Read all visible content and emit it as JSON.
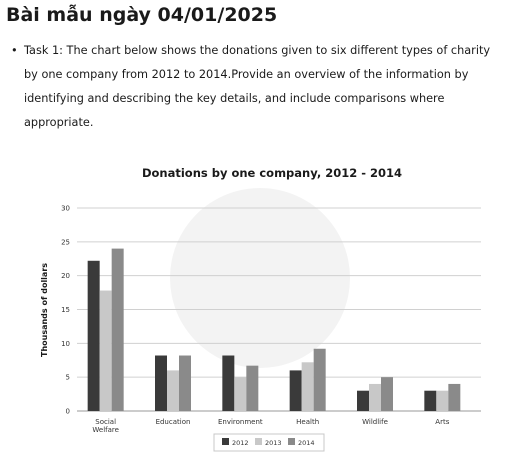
{
  "page": {
    "title": "Bài mẫu ngày 04/01/2025",
    "task_text": "Task 1: The chart below shows the donations given to six different types of charity by one company from 2012 to 2014.Provide an overview of the information by identifying and describing the key details, and include comparisons where appropriate."
  },
  "chart_data": {
    "type": "bar",
    "title": "Donations by one company, 2012 - 2014",
    "xlabel": "",
    "ylabel": "Thousands of dollars",
    "ylim": [
      0,
      30
    ],
    "yticks": [
      0,
      5,
      10,
      15,
      20,
      25,
      30
    ],
    "grid": true,
    "legend_position": "bottom",
    "categories": [
      [
        "Social",
        "Welfare"
      ],
      [
        "Education"
      ],
      [
        "Environment"
      ],
      [
        "Health"
      ],
      [
        "Wildlife"
      ],
      [
        "Arts"
      ]
    ],
    "series": [
      {
        "name": "2012",
        "color": "#3a3a3a",
        "values": [
          22.2,
          8.2,
          8.2,
          6,
          3,
          3
        ]
      },
      {
        "name": "2013",
        "color": "#c8c8c8",
        "values": [
          17.8,
          6,
          5,
          7.2,
          4,
          3
        ]
      },
      {
        "name": "2014",
        "color": "#8a8a8a",
        "values": [
          24,
          8.2,
          6.7,
          9.2,
          5,
          4
        ]
      }
    ]
  }
}
